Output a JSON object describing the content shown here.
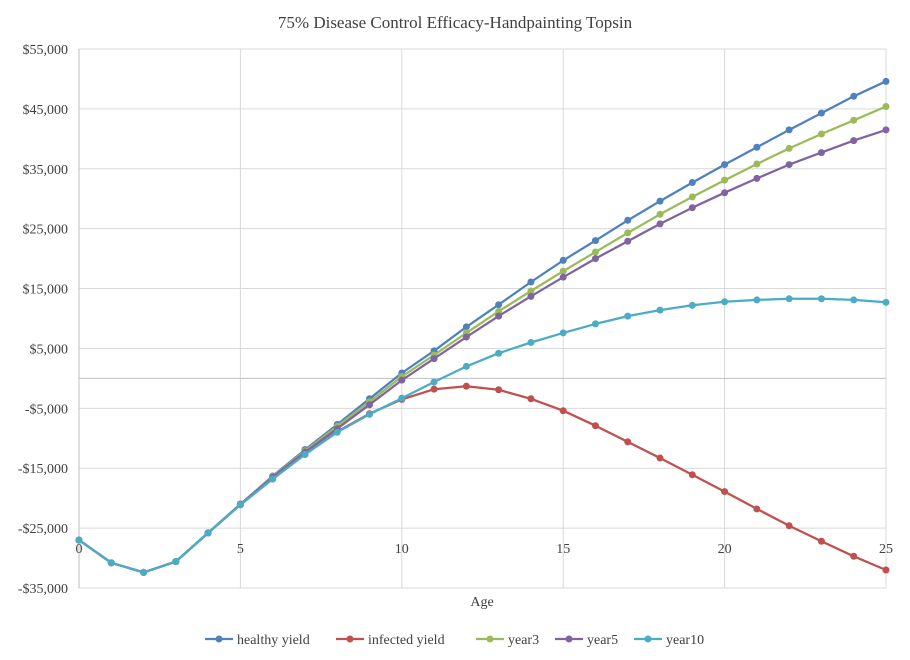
{
  "chart_data": {
    "type": "line",
    "title": "75% Disease Control Efficacy-Handpainting  Topsin",
    "xlabel": "Age",
    "ylabel": "",
    "xlim": [
      0,
      25
    ],
    "ylim": [
      -35000,
      55000
    ],
    "xticks": [
      0,
      5,
      10,
      15,
      20,
      25
    ],
    "yticks": [
      -35000,
      -25000,
      -15000,
      -5000,
      5000,
      15000,
      25000,
      35000,
      45000,
      55000
    ],
    "ytick_labels": [
      "-$35,000",
      "-$25,000",
      "-$15,000",
      "-$5,000",
      "$5,000",
      "$15,000",
      "$25,000",
      "$35,000",
      "$45,000",
      "$55,000"
    ],
    "grid": true,
    "legend_position": "bottom",
    "x": [
      0,
      1,
      2,
      3,
      4,
      5,
      6,
      7,
      8,
      9,
      10,
      11,
      12,
      13,
      14,
      15,
      16,
      17,
      18,
      19,
      20,
      21,
      22,
      23,
      24,
      25
    ],
    "series": [
      {
        "name": "healthy yield",
        "color": "#4f81bd",
        "values": [
          -27000,
          -30800,
          -32400,
          -30600,
          -25800,
          -21000,
          -16300,
          -11900,
          -7700,
          -3400,
          900,
          4600,
          8600,
          12300,
          16100,
          19700,
          23000,
          26400,
          29600,
          32700,
          35700,
          38600,
          41500,
          44300,
          47100,
          49600
        ]
      },
      {
        "name": "infected yield",
        "color": "#c0504d",
        "values": [
          -27000,
          -30800,
          -32400,
          -30600,
          -25800,
          -21100,
          -16800,
          -12700,
          -8900,
          -5900,
          -3500,
          -1800,
          -1300,
          -1900,
          -3400,
          -5400,
          -7900,
          -10600,
          -13300,
          -16100,
          -18900,
          -21800,
          -24600,
          -27200,
          -29700,
          -32000
        ]
      },
      {
        "name": "year3",
        "color": "#9bbb59",
        "values": [
          -27000,
          -30800,
          -32400,
          -30600,
          -25800,
          -21000,
          -16400,
          -12100,
          -8000,
          -3900,
          300,
          3900,
          7600,
          11200,
          14600,
          17900,
          21100,
          24300,
          27400,
          30300,
          33100,
          35800,
          38400,
          40800,
          43100,
          45400
        ]
      },
      {
        "name": "year5",
        "color": "#8064a2",
        "values": [
          -27000,
          -30800,
          -32400,
          -30600,
          -25800,
          -21000,
          -16500,
          -12300,
          -8400,
          -4400,
          -300,
          3300,
          6900,
          10400,
          13700,
          16900,
          20000,
          22900,
          25800,
          28500,
          31000,
          33400,
          35700,
          37700,
          39700,
          41500
        ]
      },
      {
        "name": "year10",
        "color": "#4bacc6",
        "values": [
          -27000,
          -30800,
          -32400,
          -30600,
          -25800,
          -21100,
          -16800,
          -12700,
          -9000,
          -6000,
          -3300,
          -600,
          2000,
          4200,
          6000,
          7600,
          9100,
          10400,
          11400,
          12200,
          12800,
          13100,
          13300,
          13300,
          13100,
          12700
        ]
      }
    ]
  }
}
